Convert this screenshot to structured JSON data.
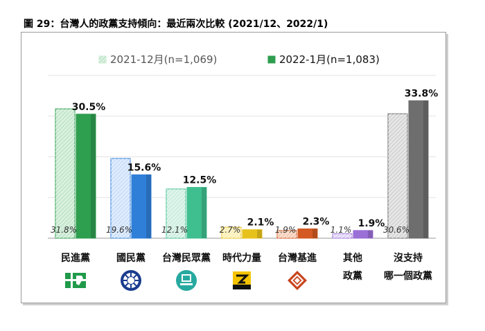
{
  "title": "圖 29：台灣人的政黨支持傾向：最近兩次比較 (2021/12、2022/1)",
  "chart_data": {
    "type": "bar",
    "ylim": [
      0,
      40
    ],
    "grid": true,
    "legend_position": "top",
    "categories": [
      {
        "lines": [
          "民進黨"
        ],
        "logo": "dpp-logo-icon"
      },
      {
        "lines": [
          "國民黨"
        ],
        "logo": "kmt-logo-icon"
      },
      {
        "lines": [
          "台灣民眾黨"
        ],
        "logo": "tpp-logo-icon"
      },
      {
        "lines": [
          "時代力量"
        ],
        "logo": "npp-logo-icon"
      },
      {
        "lines": [
          "台灣基進"
        ],
        "logo": "tsp-logo-icon"
      },
      {
        "lines": [
          "其他",
          "政黨"
        ],
        "logo": ""
      },
      {
        "lines": [
          "沒支持",
          "哪一個政黨"
        ],
        "logo": ""
      }
    ],
    "series": [
      {
        "name": "2021-12月(n=1,069)",
        "values": [
          31.8,
          19.6,
          12.1,
          2.7,
          1.9,
          1.1,
          30.6
        ],
        "labels": [
          "31.8%",
          "19.6%",
          "12.1%",
          "2.7%",
          "1.9%",
          "1.1%",
          "30.6%"
        ]
      },
      {
        "name": "2022-1月(n=1,083)",
        "values": [
          30.5,
          15.6,
          12.5,
          2.1,
          2.3,
          1.9,
          33.8
        ],
        "labels": [
          "30.5%",
          "15.6%",
          "12.5%",
          "2.1%",
          "2.3%",
          "1.9%",
          "33.8%"
        ]
      }
    ],
    "colors": [
      "#2e9e4f",
      "#2f7fd9",
      "#3fbf8f",
      "#e8c21c",
      "#d35a22",
      "#9a6fd6",
      "#6e6e6e"
    ],
    "light_colors": [
      "#c6e8cf",
      "#cfe2fa",
      "#cfeee2",
      "#fdf0b5",
      "#f5cdb6",
      "#e2d6f7",
      "#d8d8d8"
    ]
  }
}
